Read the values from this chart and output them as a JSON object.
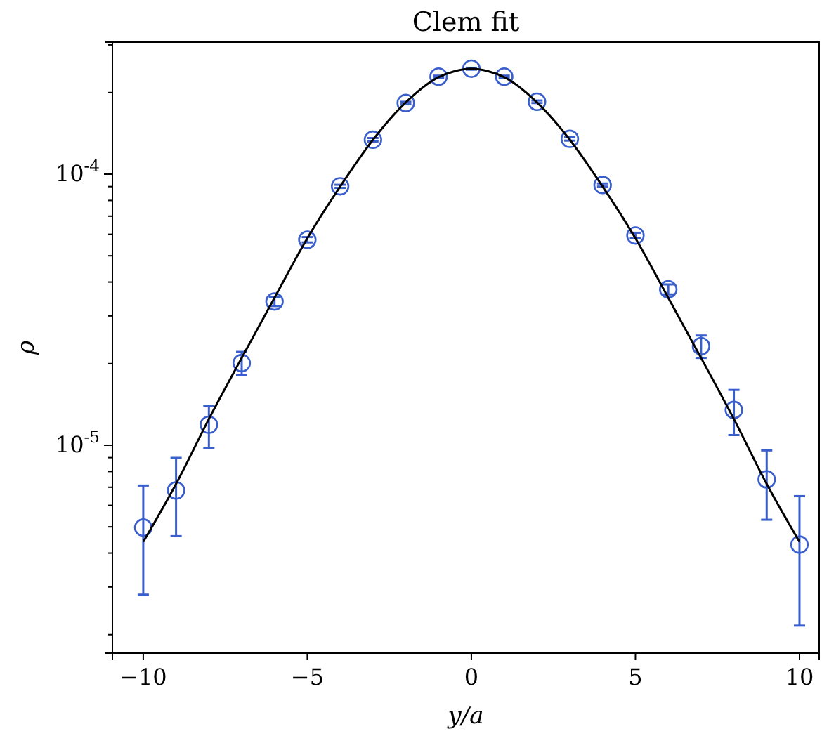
{
  "chart_data": {
    "type": "scatter",
    "title": "Clem fit",
    "xlabel": "y/a",
    "ylabel": "ρ",
    "log": "y",
    "grid": false,
    "legend": false,
    "xlim": [
      -10.94,
      10.6
    ],
    "xticks": [
      {
        "value": -10,
        "label": "−10"
      },
      {
        "value": -5,
        "label": "−5"
      },
      0,
      5,
      10
    ],
    "ylim": [
      1.71e-06,
      0.000307
    ],
    "yticks": [
      {
        "value": 2e-06,
        "label": null
      },
      {
        "value": 3e-06,
        "label": null
      },
      {
        "value": 4e-06,
        "label": null
      },
      {
        "value": 5e-06,
        "label": null
      },
      {
        "value": 6e-06,
        "label": null
      },
      {
        "value": 7e-06,
        "label": null
      },
      {
        "value": 8e-06,
        "label": null
      },
      {
        "value": 9e-06,
        "label": null
      },
      {
        "value": 1e-05,
        "label": "10$^{-5}$"
      },
      {
        "value": 2e-05,
        "label": null
      },
      {
        "value": 3e-05,
        "label": null
      },
      {
        "value": 4e-05,
        "label": null
      },
      {
        "value": 5e-05,
        "label": null
      },
      {
        "value": 6e-05,
        "label": null
      },
      {
        "value": 7e-05,
        "label": null
      },
      {
        "value": 8e-05,
        "label": null
      },
      {
        "value": 9e-05,
        "label": null
      },
      {
        "value": 0.0001,
        "label": "10$^{-4}$"
      },
      {
        "value": 0.0002,
        "label": null
      },
      {
        "value": 0.0003,
        "label": null
      }
    ],
    "series": [
      {
        "color": "#3a5fcd",
        "marker": "circle",
        "x": [
          -10,
          -9,
          -8,
          -7,
          -6,
          -5,
          -4,
          -3,
          -2,
          -1,
          0,
          1,
          2,
          3,
          4,
          5,
          6,
          7,
          8,
          9,
          10
        ],
        "values": [
          4.97e-06,
          6.81e-06,
          1.19e-05,
          2.01e-05,
          3.39e-05,
          5.73e-05,
          9.02e-05,
          0.000134,
          0.000183,
          0.000229,
          0.000245,
          0.000229,
          0.000185,
          0.000135,
          9.12e-05,
          5.94e-05,
          3.76e-05,
          2.32e-05,
          1.35e-05,
          7.48e-06,
          4.3e-06
        ],
        "errors": [
          [
            2.81e-06,
            7.1e-06
          ],
          [
            4.62e-06,
            8.98e-06
          ],
          [
            9.77e-06,
            1.4e-05
          ],
          [
            1.81e-05,
            2.21e-05
          ],
          [
            3.26e-05,
            3.52e-05
          ],
          [
            5.6e-05,
            5.86e-05
          ],
          [
            8.9e-05,
            9.14e-05
          ],
          [
            0.000132,
            0.000136
          ],
          [
            0.000181,
            0.000185
          ],
          [
            0.000227,
            0.000231
          ],
          [
            0.000243,
            0.000247
          ],
          [
            0.000227,
            0.000231
          ],
          [
            0.000183,
            0.000187
          ],
          [
            0.000133,
            0.000137
          ],
          [
            9e-05,
            9.24e-05
          ],
          [
            5.8e-05,
            6.08e-05
          ],
          [
            3.6e-05,
            3.92e-05
          ],
          [
            2.1e-05,
            2.54e-05
          ],
          [
            1.09e-05,
            1.6e-05
          ],
          [
            5.31e-06,
            9.57e-06
          ],
          [
            2.16e-06,
            6.49e-06
          ]
        ]
      },
      {
        "type": "line",
        "color": "#000000",
        "line_style": "solid",
        "x": [
          -10,
          -9,
          -8,
          -7,
          -6,
          -5,
          -4,
          -3,
          -2,
          -1,
          -0.5,
          0,
          0.5,
          1,
          2,
          3,
          4,
          5,
          6,
          7,
          8,
          9,
          10
        ],
        "values": [
          4.4e-06,
          7.2e-06,
          1.25e-05,
          2.1e-05,
          3.5e-05,
          5.8e-05,
          9e-05,
          0.000134,
          0.000184,
          0.000228,
          0.00024,
          0.000245,
          0.00024,
          0.000228,
          0.000184,
          0.000134,
          9e-05,
          5.8e-05,
          3.5e-05,
          2.1e-05,
          1.25e-05,
          7.2e-06,
          4.4e-06
        ]
      }
    ]
  }
}
